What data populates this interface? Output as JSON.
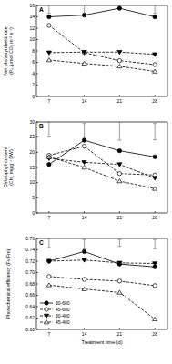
{
  "chart_data": [
    {
      "type": "line",
      "title": "A",
      "ylabel": "Net photosynthetic rate (Pₙ, μmol CO₂ m⁻² s⁻¹)",
      "x": [
        7,
        14,
        21,
        28
      ],
      "xlim": [
        4.5,
        30.5
      ],
      "xticks": [
        7,
        14,
        21,
        28
      ],
      "ylim": [
        0,
        16
      ],
      "yticks": [
        0,
        2,
        4,
        6,
        8,
        10,
        12,
        14,
        16
      ],
      "series": [
        {
          "color": "#000000",
          "marker": "circle",
          "line_style": "solid",
          "values": [
            14.0,
            14.3,
            15.5,
            14.0
          ]
        },
        {
          "color": "#000000",
          "marker": "circle-open",
          "line_style": "dashed",
          "values": [
            12.5,
            7.7,
            6.3,
            5.6
          ]
        },
        {
          "color": "#000000",
          "marker": "triangle-down",
          "line_style": "dashed",
          "values": [
            7.7,
            7.8,
            7.8,
            7.4
          ]
        },
        {
          "color": "#000000",
          "marker": "triangle-open",
          "line_style": "dashed",
          "values": [
            6.4,
            5.8,
            5.3,
            4.4
          ]
        }
      ],
      "lsd_bars": {
        "values": [
          15.6,
          15.5,
          16.1,
          15.6
        ],
        "errors": [
          1.0,
          0.9,
          0.5,
          1.0
        ]
      }
    },
    {
      "type": "line",
      "title": "B",
      "ylabel": "Chlorophyll content (Chl, mg g⁻¹ DW)",
      "x": [
        7,
        14,
        21,
        28
      ],
      "xlim": [
        4.5,
        30.5
      ],
      "xticks": [
        7,
        14,
        21,
        28
      ],
      "ylim": [
        0,
        30
      ],
      "yticks": [
        0,
        5,
        10,
        15,
        20,
        25,
        30
      ],
      "series": [
        {
          "color": "#000000",
          "marker": "circle",
          "line_style": "solid",
          "values": [
            16.0,
            24.0,
            20.5,
            18.5
          ]
        },
        {
          "color": "#000000",
          "marker": "circle-open",
          "line_style": "dashed",
          "values": [
            19.0,
            22.0,
            13.0,
            12.5
          ]
        },
        {
          "color": "#000000",
          "marker": "triangle-down",
          "line_style": "dashed",
          "values": [
            18.0,
            16.7,
            16.0,
            11.5
          ]
        },
        {
          "color": "#000000",
          "marker": "triangle-open",
          "line_style": "dashed",
          "values": [
            18.5,
            15.0,
            10.5,
            8.0
          ]
        }
      ],
      "lsd_bars": {
        "values": [
          27.5,
          26.5,
          27.0,
          26.8
        ],
        "errors": [
          2.5,
          3.0,
          3.0,
          2.7
        ]
      }
    },
    {
      "type": "line",
      "title": "C",
      "ylabel": "Photochemical efficiency (Fv/Fm)",
      "xlabel": "Treatment time (d)",
      "x": [
        7,
        14,
        21,
        28
      ],
      "xlim": [
        4.5,
        30.5
      ],
      "xticks": [
        7,
        14,
        21,
        28
      ],
      "ylim": [
        0.6,
        0.76
      ],
      "yticks": [
        {
          "value": 0.6,
          "label": "0.60"
        },
        0.62,
        0.64,
        0.66,
        0.68,
        {
          "value": 0.7,
          "label": "0.70"
        },
        0.72,
        0.74,
        0.76
      ],
      "legend": "lower left",
      "series": [
        {
          "name": "30-600",
          "color": "#000000",
          "marker": "circle",
          "line_style": "solid",
          "values": [
            0.72,
            0.737,
            0.715,
            0.71
          ]
        },
        {
          "name": "45-600",
          "color": "#000000",
          "marker": "circle-open",
          "line_style": "dashed",
          "values": [
            0.693,
            0.688,
            0.685,
            0.677
          ]
        },
        {
          "name": "30-400",
          "color": "#000000",
          "marker": "triangle-down",
          "line_style": "dashed",
          "values": [
            0.72,
            0.722,
            0.717,
            0.716
          ]
        },
        {
          "name": "45-400",
          "color": "#000000",
          "marker": "triangle-open",
          "line_style": "dashed",
          "values": [
            0.678,
            0.671,
            0.665,
            0.618
          ]
        }
      ],
      "lsd_bars": {
        "values": [
          0.752,
          0.75,
          0.752,
          0.75
        ],
        "errors": [
          0.008,
          0.008,
          0.006,
          0.008
        ]
      }
    }
  ]
}
